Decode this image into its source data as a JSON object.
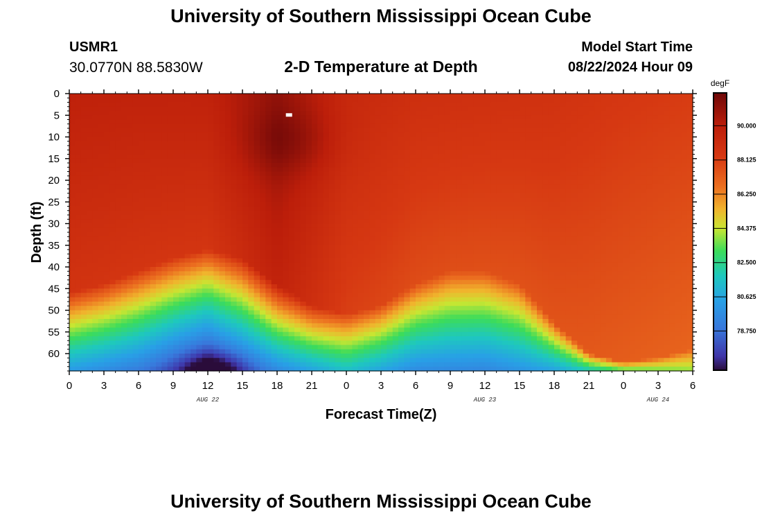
{
  "page": {
    "title": "University of Southern Mississippi Ocean Cube",
    "footer_title": "University of Southern Mississippi Ocean Cube",
    "station_id": "USMR1",
    "station_coords": "30.0770N  88.5830W",
    "model_start_label": "Model Start Time",
    "model_start_value": "08/22/2024 Hour 09"
  },
  "chart_data": {
    "type": "heatmap",
    "title": "2-D Temperature at Depth",
    "xlabel": "Forecast Time(Z)",
    "ylabel": "Depth (ft)",
    "x_range_hours": [
      0,
      54
    ],
    "x_tick_hours": [
      0,
      3,
      6,
      9,
      12,
      15,
      18,
      21,
      24,
      27,
      30,
      33,
      36,
      39,
      42,
      45,
      48,
      51,
      54
    ],
    "x_tick_labels": [
      "0",
      "3",
      "6",
      "9",
      "12",
      "15",
      "18",
      "21",
      "0",
      "3",
      "6",
      "9",
      "12",
      "15",
      "18",
      "21",
      "0",
      "3",
      "6"
    ],
    "date_labels": [
      {
        "hour": 12,
        "text": "AUG 22"
      },
      {
        "hour": 36,
        "text": "AUG 23"
      },
      {
        "hour": 51,
        "text": "AUG 24"
      }
    ],
    "y_range_ft": [
      0,
      64
    ],
    "y_ticks_ft": [
      0,
      5,
      10,
      15,
      20,
      25,
      30,
      35,
      40,
      45,
      50,
      55,
      60
    ],
    "colorbar": {
      "unit": "degF",
      "min": 76.6,
      "max": 91.8,
      "tick_values": [
        90.0,
        88.125,
        86.25,
        84.375,
        82.5,
        80.625,
        78.75
      ],
      "tick_labels": [
        "90.000",
        "88.125",
        "86.250",
        "84.375",
        "82.500",
        "80.625",
        "78.750"
      ]
    },
    "thermocline_depth_ft": [
      [
        0,
        46
      ],
      [
        3,
        44
      ],
      [
        6,
        41
      ],
      [
        9,
        38
      ],
      [
        12,
        36
      ],
      [
        15,
        38
      ],
      [
        18,
        44
      ],
      [
        21,
        49
      ],
      [
        24,
        51
      ],
      [
        27,
        49
      ],
      [
        30,
        44
      ],
      [
        33,
        41
      ],
      [
        36,
        41
      ],
      [
        39,
        44
      ],
      [
        42,
        53
      ],
      [
        45,
        60
      ],
      [
        48,
        62
      ],
      [
        51,
        61
      ],
      [
        54,
        59
      ]
    ],
    "surface_temp_degF": [
      [
        0,
        89.8
      ],
      [
        6,
        89.7
      ],
      [
        12,
        89.7
      ],
      [
        18,
        90.9
      ],
      [
        24,
        89.3
      ],
      [
        30,
        88.9
      ],
      [
        36,
        88.8
      ],
      [
        42,
        88.7
      ],
      [
        48,
        88.4
      ],
      [
        54,
        88.2
      ]
    ],
    "bottom_temp_degF": [
      [
        0,
        80.2
      ],
      [
        6,
        79.0
      ],
      [
        12,
        76.8
      ],
      [
        18,
        79.5
      ],
      [
        24,
        81.4
      ],
      [
        30,
        79.6
      ],
      [
        36,
        79.4
      ],
      [
        42,
        80.4
      ],
      [
        48,
        83.0
      ],
      [
        54,
        83.8
      ]
    ],
    "missing_cell": {
      "hour": 19,
      "depth_ft": 5
    }
  }
}
